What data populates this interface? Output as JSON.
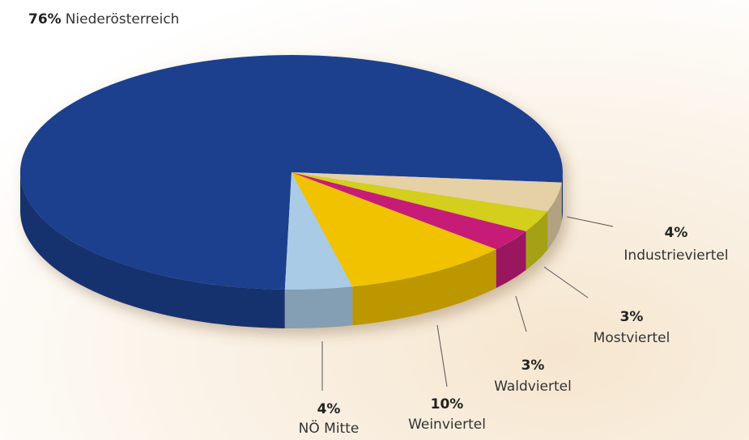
{
  "chart_data": {
    "type": "pie",
    "categories": [
      "Niederösterreich",
      "NÖ Mitte",
      "Weinviertel",
      "Waldviertel",
      "Mostviertel",
      "Industrieviertel"
    ],
    "values": [
      76,
      4,
      10,
      3,
      3,
      4
    ],
    "value_labels": [
      "76%",
      "4%",
      "10%",
      "3%",
      "3%",
      "4%"
    ],
    "colors": [
      "#1b3f8d",
      "#a9cbe6",
      "#f1c200",
      "#c61a78",
      "#d3cf1f",
      "#e6d0a6"
    ]
  }
}
